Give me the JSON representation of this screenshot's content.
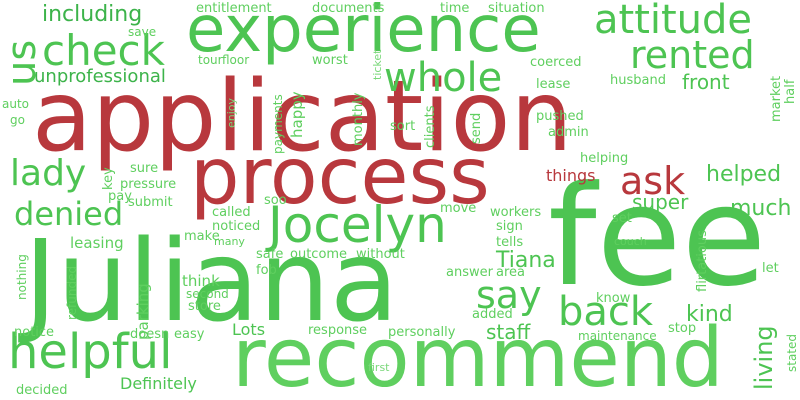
{
  "colors": {
    "red": "#b8383d",
    "green_dark": "#3cb34a",
    "green": "#4dc452",
    "green_light": "#5fcf5f",
    "green_pale": "#7ad87a"
  },
  "words": [
    "fee",
    "application",
    "Juliana",
    "recommend",
    "process",
    "experience",
    "helpful",
    "Jocelyn",
    "check",
    "rented",
    "attitude",
    "whole",
    "back",
    "say",
    "denied",
    "lady",
    "ask",
    "us",
    "unprofessional",
    "including",
    "helped",
    "much",
    "Tiana",
    "super",
    "kind",
    "staff",
    "living",
    "front",
    "Definitely",
    "Lots",
    "things",
    "entitlement",
    "documents",
    "time",
    "situation",
    "save",
    "tour",
    "floor",
    "worst",
    "ticket",
    "coerced",
    "lease",
    "husband",
    "market",
    "half",
    "auto",
    "go",
    "enjoy",
    "payments",
    "happy",
    "monthly",
    "clients",
    "sort",
    "send",
    "pushed",
    "admin",
    "helping",
    "sure",
    "pressure",
    "key",
    "pay",
    "submit",
    "soo",
    "called",
    "noticed",
    "make",
    "many",
    "safe",
    "outcome",
    "without",
    "move",
    "workers",
    "sign",
    "tells",
    "set",
    "couch",
    "flirtatious",
    "leasing",
    "parking",
    "think",
    "fob",
    "second",
    "store",
    "answer",
    "area",
    "let",
    "know",
    "nothing",
    "refunded",
    "notice",
    "doesn",
    "easy",
    "response",
    "personally",
    "added",
    "stop",
    "maintenance",
    "stated",
    "first",
    "decided"
  ]
}
